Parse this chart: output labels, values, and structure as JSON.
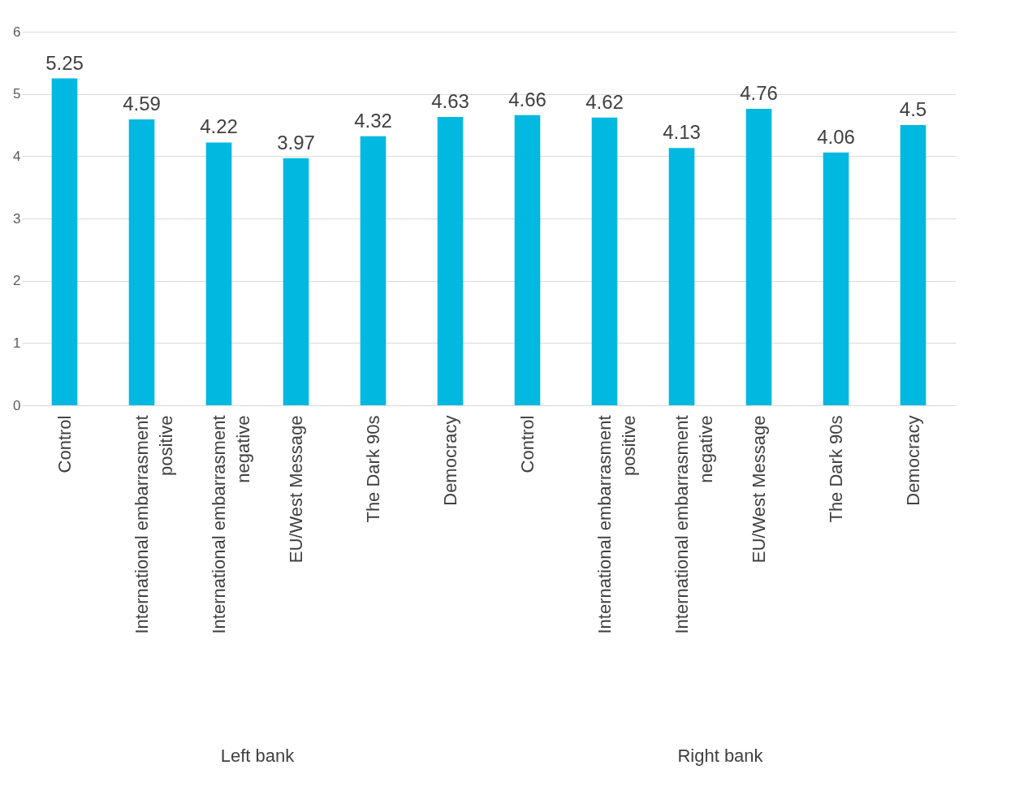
{
  "chart_data": {
    "type": "bar",
    "categories": [
      "Control",
      "International embarrasment positive",
      "International embarrasment negative",
      "EU/West Message",
      "The Dark 90s",
      "Democracy",
      "Control",
      "International embarrasment positive",
      "International embarrasment negative",
      "EU/West Message",
      "The Dark 90s",
      "Democracy"
    ],
    "values": [
      5.25,
      4.59,
      4.22,
      3.97,
      4.32,
      4.63,
      4.66,
      4.62,
      4.13,
      4.76,
      4.06,
      4.5
    ],
    "color": "#00b8e0",
    "ylim": [
      0,
      6
    ],
    "yticks": [
      0,
      1,
      2,
      3,
      4,
      5,
      6
    ],
    "grid": "y",
    "data_labels": true,
    "annotations": [
      "Left bank",
      "Right bank"
    ]
  }
}
